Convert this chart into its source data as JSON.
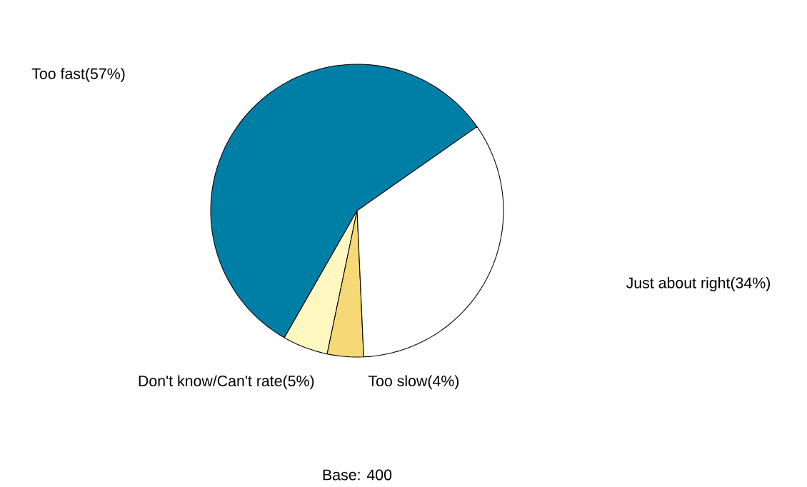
{
  "chart_data": {
    "type": "pie",
    "categories": [
      "Too fast(57%)",
      "Don't know/Can't rate(5%)",
      "Too slow(4%)",
      "Just about right(34%)"
    ],
    "values": [
      57,
      5,
      4,
      34
    ],
    "colors": [
      "#007fa6",
      "#fff7c0",
      "#f6d877",
      "#ffffff"
    ],
    "annotations": [
      "Base:  400"
    ]
  }
}
